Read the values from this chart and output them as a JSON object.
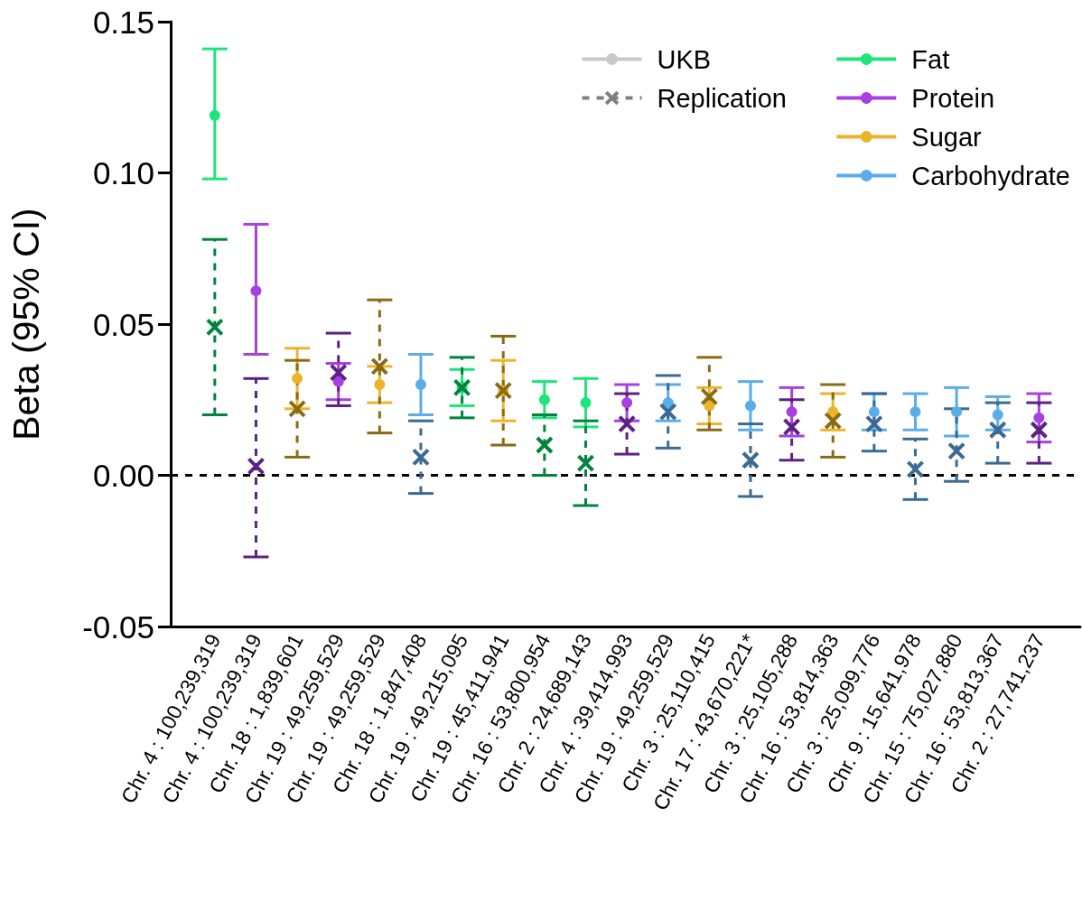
{
  "chart_data": {
    "type": "scatter",
    "ylabel": "Beta (95% CI)",
    "categories": [
      "Chr. 4 : 100,239,319",
      "Chr. 4 : 100,239,319",
      "Chr. 18 : 1,839,601",
      "Chr. 19 : 49,259,529",
      "Chr. 19 : 49,259,529",
      "Chr. 18 : 1,847,408",
      "Chr. 19 : 49,215,095",
      "Chr. 19 : 45,411,941",
      "Chr. 16 : 53,800,954",
      "Chr. 2 : 24,689,143",
      "Chr. 4 : 39,414,993",
      "Chr. 19 : 49,259,529",
      "Chr. 3 : 25,110,415",
      "Chr. 17 : 43,670,221*",
      "Chr. 3 : 25,105,288",
      "Chr. 16 : 53,814,363",
      "Chr. 3 : 25,099,776",
      "Chr. 9 : 15,641,978",
      "Chr. 15 : 75,027,880",
      "Chr. 16 : 53,813,367",
      "Chr. 2 : 27,741,237"
    ],
    "ylim": [
      -0.05,
      0.15
    ],
    "yticks": [
      {
        "value": -0.05,
        "label": "-0.05"
      },
      {
        "value": 0,
        "label": "0.00"
      },
      {
        "value": 0.05,
        "label": "0.05"
      },
      {
        "value": 0.1,
        "label": "0.10"
      },
      {
        "value": 0.15,
        "label": "0.15"
      }
    ],
    "grid": false,
    "legend": "top right",
    "ref_lines": [
      {
        "axis": "y",
        "value": 0,
        "color": "#000000",
        "line_style": "dashed"
      }
    ],
    "series": [
      {
        "name": "UKB",
        "color": "#c8c8c8",
        "marker": "circle",
        "line_style": "solid",
        "values": [
          null,
          null,
          null,
          null,
          null,
          null,
          null,
          null,
          null,
          null,
          null,
          null,
          null,
          null,
          null,
          null,
          null,
          null,
          null,
          null,
          null
        ]
      },
      {
        "name": "Replication",
        "color": "#808080",
        "marker": "cross",
        "line_style": "dashed",
        "values": [
          null,
          null,
          null,
          null,
          null,
          null,
          null,
          null,
          null,
          null,
          null,
          null,
          null,
          null,
          null,
          null,
          null,
          null,
          null,
          null,
          null
        ]
      },
      {
        "name": "Fat",
        "color": "#1de57a",
        "marker": "circle",
        "line_style": "solid",
        "values": [
          0.119,
          null,
          null,
          null,
          null,
          null,
          0.029,
          null,
          0.025,
          0.024,
          null,
          null,
          null,
          null,
          null,
          null,
          null,
          null,
          null,
          null,
          null
        ],
        "errors": [
          [
            0.098,
            0.141
          ],
          null,
          null,
          null,
          null,
          null,
          [
            0.023,
            0.035
          ],
          null,
          [
            0.019,
            0.031
          ],
          [
            0.016,
            0.032
          ],
          null,
          null,
          null,
          null,
          null,
          null,
          null,
          null,
          null,
          null,
          null
        ]
      },
      {
        "name": "Protein",
        "color": "#a83fe0",
        "marker": "circle",
        "line_style": "solid",
        "values": [
          null,
          0.061,
          null,
          0.031,
          null,
          null,
          null,
          null,
          null,
          null,
          0.024,
          null,
          null,
          null,
          0.021,
          null,
          null,
          null,
          null,
          null,
          0.019
        ],
        "errors": [
          null,
          [
            0.04,
            0.083
          ],
          null,
          [
            0.025,
            0.037
          ],
          null,
          null,
          null,
          null,
          null,
          null,
          [
            0.018,
            0.03
          ],
          null,
          null,
          null,
          [
            0.013,
            0.029
          ],
          null,
          null,
          null,
          null,
          null,
          [
            0.011,
            0.027
          ]
        ]
      },
      {
        "name": "Sugar",
        "color": "#ebb42a",
        "marker": "circle",
        "line_style": "solid",
        "values": [
          null,
          null,
          0.032,
          null,
          0.03,
          null,
          null,
          0.028,
          null,
          null,
          null,
          null,
          0.023,
          null,
          null,
          0.021,
          null,
          null,
          null,
          null,
          null
        ],
        "errors": [
          null,
          null,
          [
            0.022,
            0.042
          ],
          null,
          [
            0.024,
            0.036
          ],
          null,
          null,
          [
            0.018,
            0.038
          ],
          null,
          null,
          null,
          null,
          [
            0.017,
            0.029
          ],
          null,
          null,
          [
            0.015,
            0.027
          ],
          null,
          null,
          null,
          null,
          null
        ]
      },
      {
        "name": "Carbohydrate",
        "color": "#5aade8",
        "marker": "circle",
        "line_style": "solid",
        "values": [
          null,
          null,
          null,
          null,
          null,
          0.03,
          null,
          null,
          null,
          null,
          null,
          0.024,
          null,
          0.023,
          null,
          null,
          0.021,
          0.021,
          0.021,
          0.02,
          null
        ],
        "errors": [
          null,
          null,
          null,
          null,
          null,
          [
            0.02,
            0.04
          ],
          null,
          null,
          null,
          null,
          null,
          [
            0.018,
            0.03
          ],
          null,
          [
            0.015,
            0.031
          ],
          null,
          null,
          [
            0.015,
            0.027
          ],
          [
            0.015,
            0.027
          ],
          [
            0.013,
            0.029
          ],
          [
            0.015,
            0.026
          ],
          null
        ]
      },
      {
        "color": "#00843d",
        "marker": "cross",
        "line_style": "dashed",
        "values": [
          0.049,
          null,
          null,
          null,
          null,
          null,
          0.029,
          null,
          0.01,
          0.004,
          null,
          null,
          null,
          null,
          null,
          null,
          null,
          null,
          null,
          null,
          null
        ],
        "errors": [
          [
            0.02,
            0.078
          ],
          null,
          null,
          null,
          null,
          null,
          [
            0.019,
            0.039
          ],
          null,
          [
            0.0,
            0.02
          ],
          [
            -0.01,
            0.018
          ],
          null,
          null,
          null,
          null,
          null,
          null,
          null,
          null,
          null,
          null,
          null
        ]
      },
      {
        "color": "#5c2283",
        "marker": "cross",
        "line_style": "dashed",
        "values": [
          null,
          0.003,
          null,
          0.034,
          null,
          null,
          null,
          null,
          null,
          null,
          0.017,
          null,
          null,
          null,
          0.016,
          null,
          null,
          null,
          null,
          null,
          0.015
        ],
        "errors": [
          null,
          [
            -0.027,
            0.032
          ],
          null,
          [
            0.023,
            0.047
          ],
          null,
          null,
          null,
          null,
          null,
          null,
          [
            0.007,
            0.027
          ],
          null,
          null,
          null,
          [
            0.005,
            0.025
          ],
          null,
          null,
          null,
          null,
          null,
          [
            0.004,
            0.024
          ]
        ]
      },
      {
        "color": "#8a6b14",
        "marker": "cross",
        "line_style": "dashed",
        "values": [
          null,
          null,
          0.022,
          null,
          0.036,
          null,
          null,
          0.028,
          null,
          null,
          null,
          null,
          0.026,
          null,
          null,
          0.018,
          null,
          null,
          null,
          null,
          null
        ],
        "errors": [
          null,
          null,
          [
            0.006,
            0.038
          ],
          null,
          [
            0.014,
            0.058
          ],
          null,
          null,
          [
            0.01,
            0.046
          ],
          null,
          null,
          null,
          null,
          [
            0.015,
            0.039
          ],
          null,
          null,
          [
            0.006,
            0.03
          ],
          null,
          null,
          null,
          null,
          null
        ]
      },
      {
        "color": "#3b6a93",
        "marker": "cross",
        "line_style": "dashed",
        "values": [
          null,
          null,
          null,
          null,
          null,
          0.006,
          null,
          null,
          null,
          null,
          null,
          0.021,
          null,
          0.005,
          null,
          null,
          0.017,
          0.002,
          0.008,
          0.015,
          null
        ],
        "errors": [
          null,
          null,
          null,
          null,
          null,
          [
            -0.006,
            0.018
          ],
          null,
          null,
          null,
          null,
          null,
          [
            0.009,
            0.033
          ],
          null,
          [
            -0.007,
            0.017
          ],
          null,
          null,
          [
            0.008,
            0.027
          ],
          [
            -0.008,
            0.012
          ],
          [
            -0.002,
            0.022
          ],
          [
            0.004,
            0.024
          ],
          null
        ]
      }
    ]
  }
}
